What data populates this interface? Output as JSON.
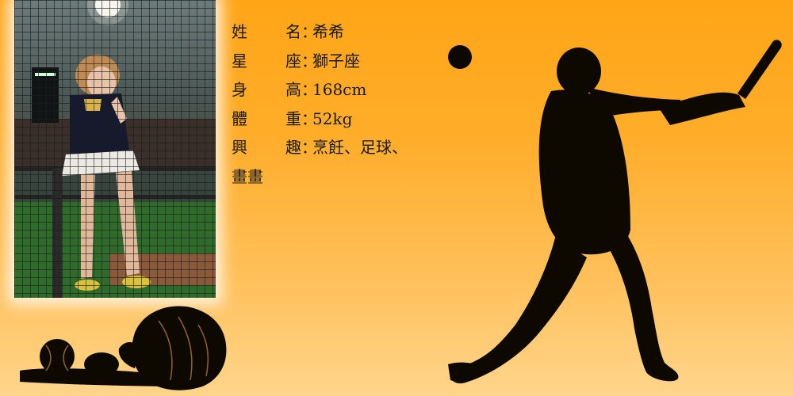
{
  "profile": {
    "rows": [
      {
        "label_a": "姓",
        "label_b": "名",
        "sep": "：",
        "value": "希希"
      },
      {
        "label_a": "星",
        "label_b": "座",
        "sep": "：",
        "value": "獅子座"
      },
      {
        "label_a": "身",
        "label_b": "高",
        "sep": "：",
        "value": "168cm"
      },
      {
        "label_a": "體",
        "label_b": "重",
        "sep": "：",
        "value": "52kg"
      },
      {
        "label_a": "興",
        "label_b": "趣",
        "sep": "：",
        "value": "烹飪、足球、"
      }
    ],
    "continuation": "畫畫"
  },
  "colors": {
    "background_top": "#ffa516",
    "background_bottom": "#ffd58c",
    "silhouette": "#0d0800"
  }
}
